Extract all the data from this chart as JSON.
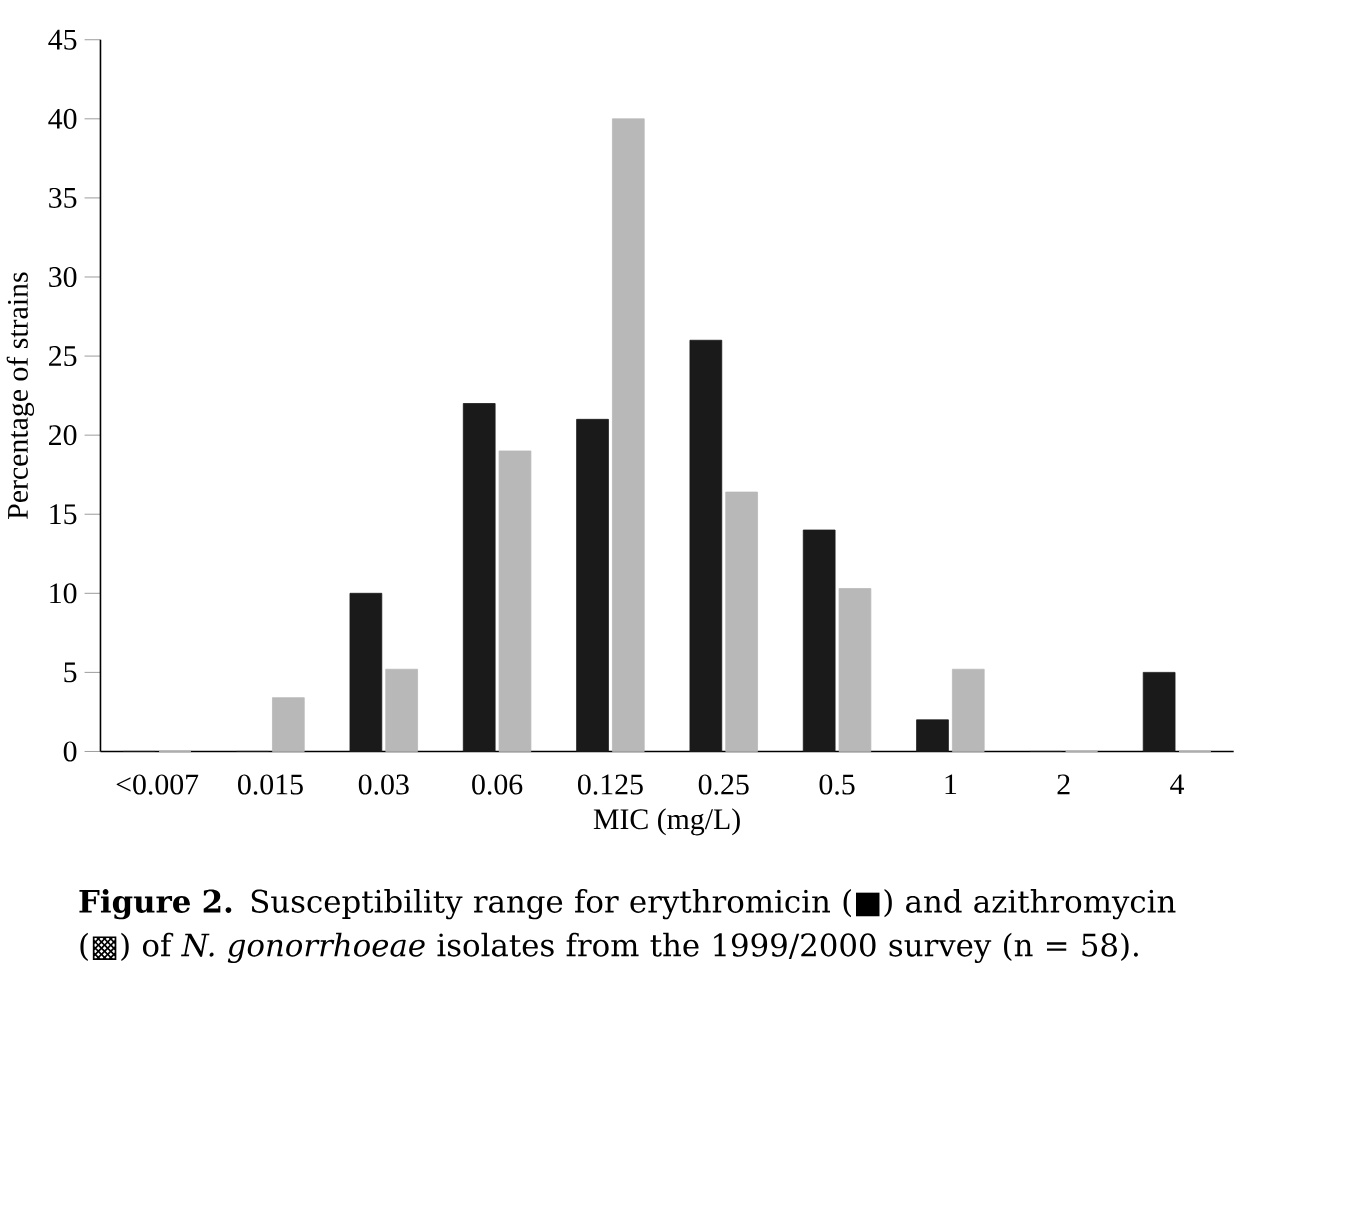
{
  "chart_data": {
    "type": "bar",
    "xlabel": "MIC (mg/L)",
    "ylabel": "Percentage of strains",
    "categories": [
      "<0.007",
      "0.015",
      "0.03",
      "0.06",
      "0.125",
      "0.25",
      "0.5",
      "1",
      "2",
      "4"
    ],
    "series": [
      {
        "color": "#1a1a1a",
        "values": [
          0,
          0,
          10,
          22,
          21,
          26,
          14,
          2,
          0,
          5
        ]
      },
      {
        "color": "#b8b8b8",
        "values": [
          0,
          3.4,
          5.2,
          19,
          40,
          16.4,
          10.3,
          5.2,
          0,
          0
        ]
      }
    ],
    "ylim": [
      0,
      45
    ],
    "yticks": [
      0,
      5,
      10,
      15,
      20,
      25,
      30,
      35,
      40,
      45
    ],
    "grid": false,
    "annotations": [
      "**Figure 2.** Susceptibility range for erythromicin (■) and azithromycin (▩) of *N. gonorrhoeae* isolates from the 1999/2000 survey (n = 58)."
    ]
  }
}
